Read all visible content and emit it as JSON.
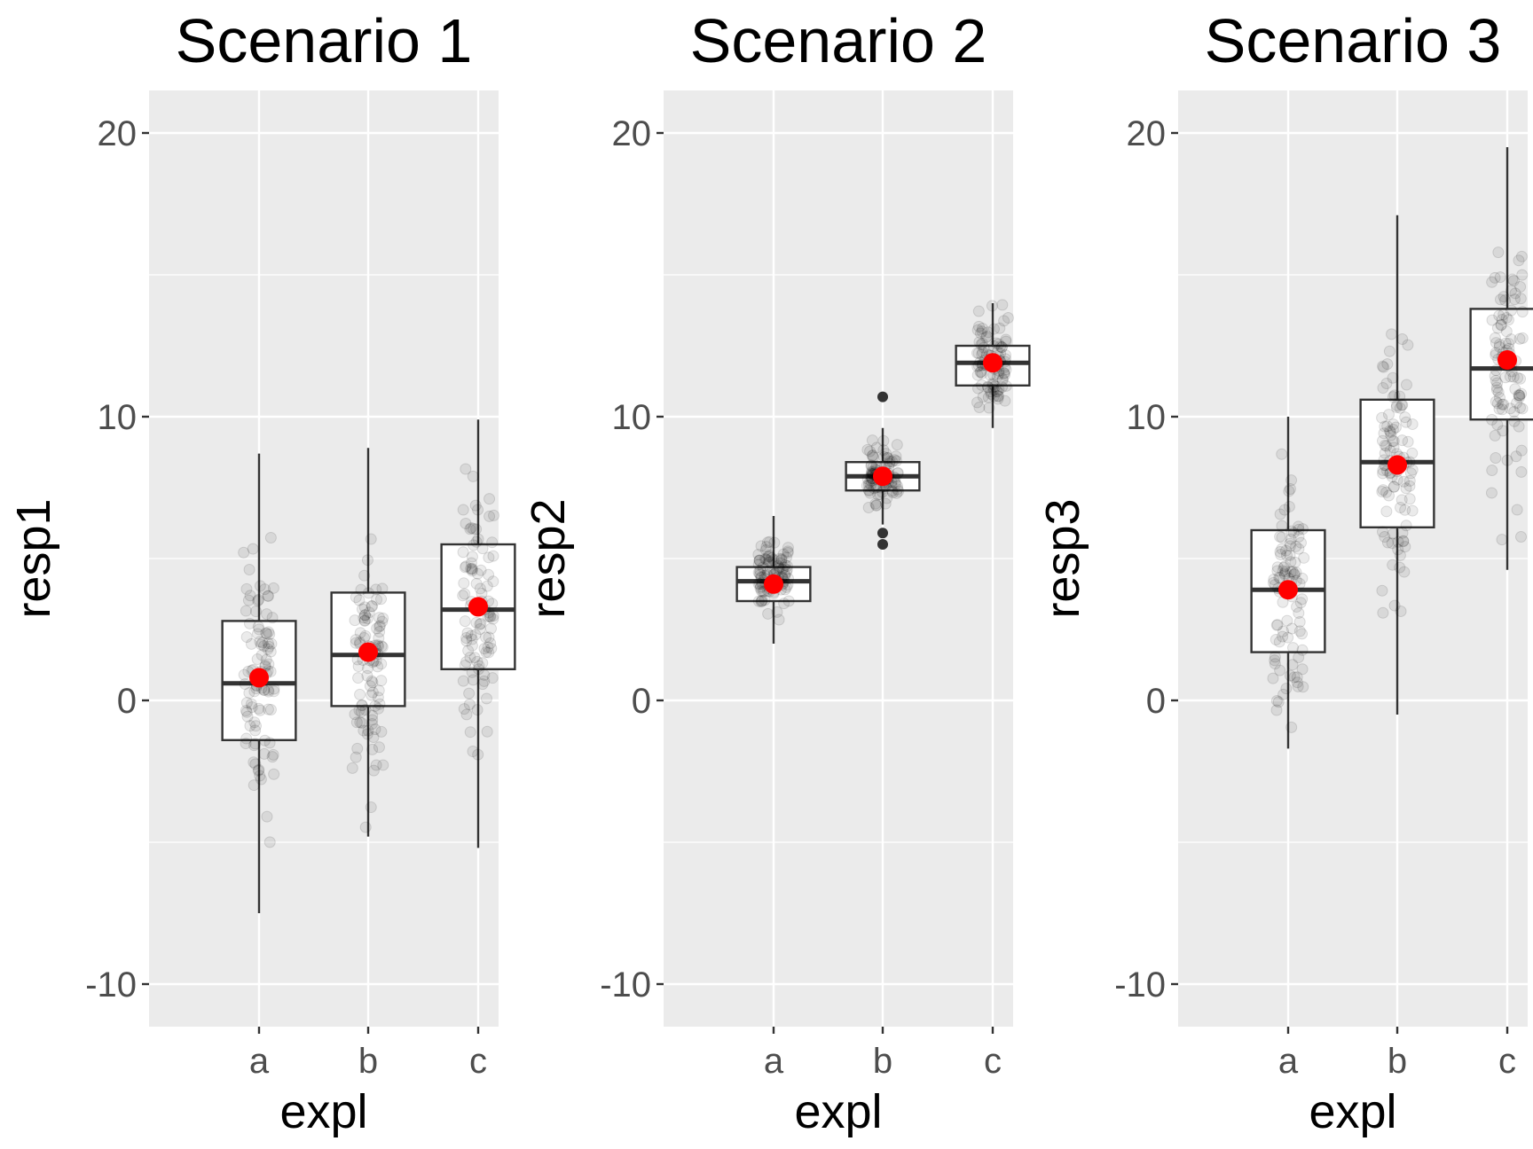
{
  "chart_data": [
    {
      "type": "box",
      "title": "Scenario 1",
      "xlabel": "expl",
      "ylabel": "resp1",
      "categories": [
        "a",
        "b",
        "c"
      ],
      "ylim": [
        -11.5,
        21.5
      ],
      "yticks": [
        "-10",
        "0",
        "10",
        "20"
      ],
      "boxes": [
        {
          "category": "a",
          "whisker_low": -7.5,
          "q1": -1.4,
          "median": 0.6,
          "q3": 2.8,
          "whisker_high": 8.7,
          "mean": 0.8,
          "outliers": []
        },
        {
          "category": "b",
          "whisker_low": -4.8,
          "q1": -0.2,
          "median": 1.6,
          "q3": 3.8,
          "whisker_high": 8.9,
          "mean": 1.7,
          "outliers": []
        },
        {
          "category": "c",
          "whisker_low": -5.2,
          "q1": 1.1,
          "median": 3.2,
          "q3": 5.5,
          "whisker_high": 9.9,
          "mean": 3.3,
          "outliers": []
        }
      ]
    },
    {
      "type": "box",
      "title": "Scenario 2",
      "xlabel": "expl",
      "ylabel": "resp2",
      "categories": [
        "a",
        "b",
        "c"
      ],
      "ylim": [
        -11.5,
        21.5
      ],
      "yticks": [
        "-10",
        "0",
        "10",
        "20"
      ],
      "boxes": [
        {
          "category": "a",
          "whisker_low": 2.0,
          "q1": 3.5,
          "median": 4.2,
          "q3": 4.7,
          "whisker_high": 6.5,
          "mean": 4.1,
          "outliers": []
        },
        {
          "category": "b",
          "whisker_low": 6.2,
          "q1": 7.4,
          "median": 7.9,
          "q3": 8.4,
          "whisker_high": 9.6,
          "mean": 7.9,
          "outliers": [
            10.7,
            5.9,
            5.5
          ]
        },
        {
          "category": "c",
          "whisker_low": 9.6,
          "q1": 11.1,
          "median": 11.9,
          "q3": 12.5,
          "whisker_high": 14.0,
          "mean": 11.9,
          "outliers": []
        }
      ]
    },
    {
      "type": "box",
      "title": "Scenario 3",
      "xlabel": "expl",
      "ylabel": "resp3",
      "categories": [
        "a",
        "b",
        "c"
      ],
      "ylim": [
        -11.5,
        21.5
      ],
      "yticks": [
        "-10",
        "0",
        "10",
        "20"
      ],
      "boxes": [
        {
          "category": "a",
          "whisker_low": -1.7,
          "q1": 1.7,
          "median": 3.9,
          "q3": 6.0,
          "whisker_high": 10.0,
          "mean": 3.9,
          "outliers": []
        },
        {
          "category": "b",
          "whisker_low": -0.5,
          "q1": 6.1,
          "median": 8.4,
          "q3": 10.6,
          "whisker_high": 17.1,
          "mean": 8.3,
          "outliers": []
        },
        {
          "category": "c",
          "whisker_low": 4.6,
          "q1": 9.9,
          "median": 11.7,
          "q3": 13.8,
          "whisker_high": 19.5,
          "mean": 12.0,
          "outliers": []
        }
      ]
    }
  ],
  "colors": {
    "panel_background": "#ebebeb",
    "grid": "#ffffff",
    "box_fill": "#ffffff",
    "box_line": "#333333",
    "mean_point": "#ff0000",
    "jitter_point": "#000000",
    "tick_text": "#4d4d4d"
  }
}
